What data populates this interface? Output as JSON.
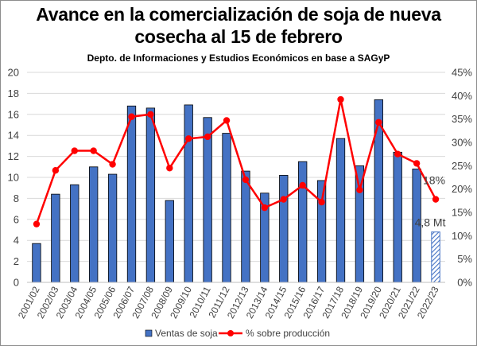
{
  "chart_data": {
    "type": "bar",
    "title_line1": "Avance en la comercialización de soja de nueva",
    "title_line2": "cosecha al 15 de febrero",
    "subtitle": "Depto. de Informaciones y Estudios Económicos en base a SAGyP",
    "categories": [
      "2001/02",
      "2002/03",
      "2003/04",
      "2004/05",
      "2005/06",
      "2006/07",
      "2007/08",
      "2008/09",
      "2009/10",
      "2010/11",
      "2011/12",
      "2012/13",
      "2013/14",
      "2014/15",
      "2015/16",
      "2016/17",
      "2017/18",
      "2018/19",
      "2019/20",
      "2020/21",
      "2021/22",
      "2022/23"
    ],
    "series": [
      {
        "name": "Ventas de soja",
        "axis": "left",
        "kind": "bar",
        "color": "#4472c4",
        "values": [
          3.7,
          8.4,
          9.3,
          11.0,
          10.3,
          16.8,
          16.6,
          7.8,
          16.9,
          15.7,
          14.2,
          10.6,
          8.5,
          10.2,
          11.5,
          9.7,
          13.7,
          11.1,
          17.4,
          12.4,
          10.8,
          4.8
        ]
      },
      {
        "name": "% sobre producción",
        "axis": "right",
        "kind": "line",
        "color": "#ff0000",
        "values": [
          12.5,
          24.0,
          28.2,
          28.2,
          25.3,
          35.5,
          36.0,
          24.5,
          30.8,
          31.2,
          34.7,
          22.0,
          16.0,
          17.8,
          20.8,
          17.2,
          39.2,
          19.8,
          34.3,
          27.5,
          25.5,
          17.8
        ]
      }
    ],
    "hatched_last_bar": true,
    "annotations": [
      {
        "text": "18%",
        "category": "2022/23",
        "series": "% sobre producción"
      },
      {
        "text": "4,8 Mt",
        "category": "2022/23",
        "series": "Ventas de soja"
      }
    ],
    "ylim_left": [
      0,
      20
    ],
    "yticks_left": [
      "0",
      "2",
      "4",
      "6",
      "8",
      "10",
      "12",
      "14",
      "16",
      "18",
      "20"
    ],
    "ylim_right": [
      0,
      45
    ],
    "yticks_right": [
      "0%",
      "5%",
      "10%",
      "15%",
      "20%",
      "25%",
      "30%",
      "35%",
      "40%",
      "45%"
    ],
    "grid": "horizontal",
    "legend_position": "bottom"
  }
}
